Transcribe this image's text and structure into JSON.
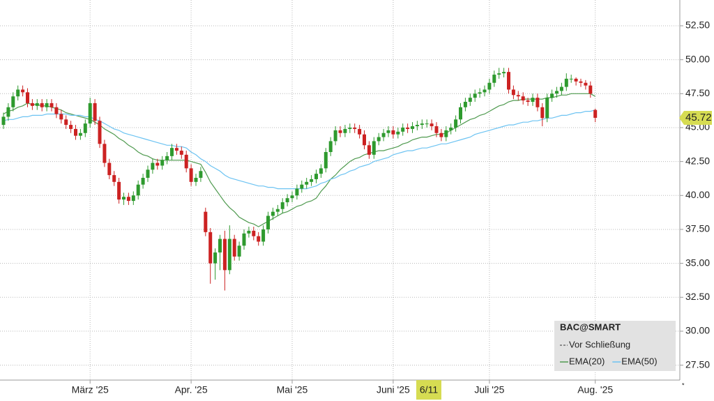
{
  "chart_data": {
    "type": "candlestick",
    "symbol": "BAC@SMART",
    "legend_note": "Vor Schließung",
    "footnote": "*",
    "crosshair_label": "6/11",
    "last_price": {
      "value": 45.72,
      "label": "45.72"
    },
    "categories": [
      null,
      null,
      null,
      null,
      null,
      null,
      null,
      null,
      null,
      null,
      null,
      null,
      null,
      null,
      null,
      null,
      null,
      null,
      "März '25",
      null,
      null,
      null,
      null,
      null,
      null,
      null,
      null,
      null,
      null,
      null,
      null,
      null,
      null,
      null,
      null,
      null,
      null,
      null,
      null,
      "Apr. '25",
      null,
      null,
      null,
      null,
      null,
      null,
      null,
      null,
      null,
      null,
      null,
      null,
      null,
      null,
      null,
      null,
      null,
      null,
      null,
      null,
      "Mai '25",
      null,
      null,
      null,
      null,
      null,
      null,
      null,
      null,
      null,
      null,
      null,
      null,
      null,
      null,
      null,
      null,
      null,
      null,
      null,
      null,
      "Juni '25",
      null,
      null,
      null,
      null,
      null,
      null,
      null,
      null,
      null,
      null,
      null,
      null,
      null,
      null,
      null,
      null,
      null,
      null,
      null,
      "Juli '25",
      null,
      null,
      null,
      null,
      null,
      null,
      null,
      null,
      null,
      null,
      null,
      null,
      null,
      null,
      null,
      null,
      null,
      null,
      null,
      null,
      null,
      "Aug. '25"
    ],
    "candles": {
      "up_color": "#2e9a2e",
      "down_color": "#cc2222",
      "open": [
        45.2,
        45.8,
        46.5,
        47.3,
        47.8,
        47.6,
        46.8,
        46.6,
        46.8,
        46.5,
        46.8,
        46.5,
        46.0,
        45.6,
        45.2,
        44.9,
        44.4,
        44.6,
        45.3,
        46.8,
        45.5,
        43.8,
        42.4,
        41.5,
        41.0,
        39.7,
        39.9,
        39.6,
        40.0,
        40.8,
        41.3,
        41.9,
        42.4,
        42.2,
        42.6,
        42.9,
        43.5,
        43.3,
        43.0,
        42.0,
        41.0,
        41.3,
        38.8,
        37.3,
        35.0,
        35.8,
        36.8,
        34.5,
        36.8,
        35.5,
        36.3,
        37.2,
        37.4,
        37.0,
        36.6,
        37.5,
        38.5,
        38.8,
        39.0,
        39.5,
        39.8,
        40.0,
        40.5,
        40.8,
        41.0,
        41.2,
        41.6,
        42.0,
        43.2,
        44.0,
        44.8,
        44.6,
        44.9,
        45.0,
        44.9,
        44.5,
        43.7,
        43.0,
        44.0,
        44.3,
        44.6,
        44.8,
        44.5,
        44.7,
        45.0,
        44.9,
        45.1,
        45.2,
        45.3,
        45.3,
        45.1,
        44.6,
        44.3,
        44.8,
        45.0,
        45.6,
        46.5,
        46.9,
        47.2,
        47.5,
        47.6,
        47.8,
        48.3,
        48.9,
        49.0,
        49.1,
        47.8,
        47.4,
        47.3,
        47.0,
        46.9,
        47.2,
        46.5,
        45.7,
        47.2,
        47.5,
        47.7,
        48.0,
        48.6,
        48.6,
        48.4,
        48.3,
        48.1,
        46.3
      ],
      "high": [
        46.1,
        46.8,
        47.6,
        48.1,
        48.1,
        47.9,
        47.1,
        47.1,
        47.1,
        47.1,
        47.1,
        46.8,
        46.3,
        45.9,
        45.5,
        45.2,
        44.9,
        45.6,
        47.2,
        47.1,
        45.8,
        44.1,
        42.7,
        41.8,
        41.3,
        40.2,
        40.2,
        40.3,
        41.1,
        41.6,
        42.2,
        42.7,
        42.7,
        42.9,
        43.2,
        43.8,
        43.8,
        43.6,
        43.3,
        42.3,
        41.6,
        42.1,
        39.1,
        37.6,
        36.1,
        37.1,
        37.4,
        37.8,
        37.1,
        36.6,
        37.5,
        37.7,
        37.7,
        37.3,
        37.8,
        38.8,
        39.1,
        39.3,
        39.8,
        40.1,
        40.3,
        40.8,
        41.1,
        41.3,
        41.5,
        41.9,
        42.3,
        43.5,
        44.3,
        45.1,
        45.1,
        45.2,
        45.3,
        45.3,
        45.2,
        44.8,
        44.0,
        44.3,
        44.6,
        44.9,
        45.1,
        45.1,
        45.0,
        45.3,
        45.3,
        45.4,
        45.5,
        45.6,
        45.6,
        45.6,
        45.4,
        44.9,
        45.1,
        45.3,
        45.9,
        46.8,
        47.2,
        47.5,
        47.8,
        47.9,
        48.1,
        48.6,
        49.2,
        49.4,
        49.4,
        49.4,
        48.1,
        47.7,
        47.6,
        47.2,
        47.5,
        47.5,
        46.8,
        47.5,
        47.8,
        48.0,
        48.3,
        49.0,
        48.9,
        48.7,
        48.6,
        48.5,
        48.4,
        46.4
      ],
      "low": [
        44.9,
        45.5,
        46.2,
        47.0,
        47.3,
        46.5,
        46.3,
        46.3,
        46.2,
        46.2,
        46.2,
        45.7,
        45.3,
        44.9,
        44.6,
        44.1,
        44.1,
        44.3,
        45.0,
        45.2,
        43.5,
        42.1,
        41.2,
        40.7,
        39.4,
        39.3,
        39.3,
        39.3,
        39.7,
        40.5,
        41.0,
        41.6,
        41.9,
        41.9,
        42.3,
        42.6,
        43.0,
        42.7,
        41.7,
        40.7,
        40.7,
        41.0,
        37.0,
        33.5,
        33.8,
        34.5,
        33.0,
        34.2,
        35.2,
        35.2,
        36.0,
        36.9,
        36.7,
        36.3,
        36.3,
        37.2,
        38.2,
        38.5,
        38.7,
        39.2,
        39.5,
        39.7,
        40.2,
        40.5,
        40.7,
        40.9,
        41.3,
        41.7,
        42.9,
        43.7,
        44.3,
        44.3,
        44.6,
        44.6,
        44.2,
        43.4,
        42.7,
        42.7,
        43.7,
        44.0,
        44.3,
        44.2,
        44.2,
        44.4,
        44.6,
        44.6,
        44.8,
        44.9,
        45.0,
        44.8,
        44.3,
        44.0,
        44.0,
        44.5,
        44.7,
        45.3,
        46.2,
        46.6,
        46.9,
        47.2,
        47.3,
        47.5,
        48.0,
        48.6,
        48.7,
        47.5,
        47.1,
        47.0,
        46.7,
        46.6,
        46.6,
        46.2,
        45.1,
        45.4,
        46.9,
        47.2,
        47.4,
        47.7,
        48.3,
        48.1,
        48.0,
        47.8,
        47.2,
        45.4
      ],
      "close": [
        45.8,
        46.5,
        47.3,
        47.8,
        47.6,
        46.8,
        46.6,
        46.8,
        46.5,
        46.8,
        46.5,
        46.0,
        45.6,
        45.2,
        44.9,
        44.4,
        44.6,
        45.3,
        46.8,
        45.5,
        43.8,
        42.4,
        41.5,
        41.0,
        39.7,
        39.9,
        39.6,
        40.0,
        40.8,
        41.3,
        41.9,
        42.4,
        42.2,
        42.6,
        42.9,
        43.5,
        43.3,
        43.0,
        42.0,
        41.0,
        41.3,
        41.8,
        37.3,
        35.0,
        35.8,
        36.8,
        34.5,
        36.8,
        35.5,
        36.3,
        37.2,
        37.4,
        37.0,
        36.6,
        37.5,
        38.5,
        38.8,
        39.0,
        39.5,
        39.8,
        40.0,
        40.5,
        40.8,
        41.0,
        41.2,
        41.6,
        42.0,
        43.2,
        44.0,
        44.8,
        44.6,
        44.9,
        45.0,
        44.9,
        44.5,
        43.7,
        43.0,
        44.0,
        44.3,
        44.6,
        44.8,
        44.5,
        44.7,
        45.0,
        44.9,
        45.1,
        45.2,
        45.3,
        45.3,
        45.1,
        44.6,
        44.3,
        44.8,
        45.0,
        45.6,
        46.5,
        46.9,
        47.2,
        47.5,
        47.6,
        47.8,
        48.3,
        48.9,
        49.0,
        49.1,
        47.8,
        47.4,
        47.3,
        47.0,
        46.9,
        47.2,
        46.5,
        45.7,
        47.2,
        47.5,
        47.7,
        48.0,
        48.6,
        48.6,
        48.4,
        48.3,
        48.1,
        47.5,
        45.72
      ]
    },
    "series": [
      {
        "name": "EMA(20)",
        "color": "#4f9a4f",
        "values": [
          46.0,
          46.2,
          46.3,
          46.5,
          46.6,
          46.8,
          46.7,
          46.7,
          46.6,
          46.6,
          46.5,
          46.4,
          46.3,
          46.1,
          46.0,
          45.9,
          45.8,
          45.7,
          45.6,
          45.4,
          45.2,
          44.9,
          44.7,
          44.5,
          44.2,
          44.0,
          43.7,
          43.5,
          43.2,
          43.0,
          42.9,
          42.7,
          42.6,
          42.6,
          42.6,
          42.6,
          42.6,
          42.6,
          42.6,
          42.5,
          42.4,
          42.3,
          41.7,
          41.0,
          40.5,
          40.0,
          39.5,
          39.1,
          38.8,
          38.4,
          38.2,
          38.0,
          37.9,
          37.7,
          37.9,
          38.1,
          38.3,
          38.5,
          38.7,
          38.8,
          39.0,
          39.2,
          39.3,
          39.5,
          39.6,
          39.8,
          40.3,
          40.7,
          41.2,
          41.5,
          41.9,
          42.2,
          42.5,
          42.7,
          42.8,
          43.0,
          43.1,
          43.2,
          43.3,
          43.3,
          43.4,
          43.5,
          43.6,
          43.8,
          43.9,
          44.1,
          44.2,
          44.3,
          44.3,
          44.4,
          44.5,
          44.5,
          44.6,
          44.8,
          45.0,
          45.2,
          45.4,
          45.6,
          45.7,
          45.9,
          46.0,
          46.2,
          46.4,
          46.6,
          46.7,
          46.9,
          47.0,
          47.0,
          47.1,
          47.1,
          47.1,
          47.1,
          47.1,
          47.2,
          47.2,
          47.3,
          47.4,
          47.4,
          47.5,
          47.5,
          47.5,
          47.5,
          47.5,
          47.3
        ]
      },
      {
        "name": "EMA(50)",
        "color": "#6cc3f2",
        "values": [
          45.5,
          45.6,
          45.6,
          45.7,
          45.8,
          45.8,
          45.9,
          45.9,
          45.9,
          46.0,
          46.0,
          46.0,
          46.0,
          46.0,
          45.9,
          45.9,
          45.9,
          45.8,
          45.8,
          45.6,
          45.5,
          45.3,
          45.1,
          44.9,
          44.8,
          44.6,
          44.5,
          44.4,
          44.3,
          44.2,
          44.1,
          44.0,
          43.9,
          43.8,
          43.7,
          43.7,
          43.6,
          43.6,
          43.5,
          43.2,
          43.0,
          42.7,
          42.5,
          42.2,
          42.0,
          41.8,
          41.5,
          41.3,
          41.2,
          41.1,
          41.0,
          40.9,
          40.8,
          40.7,
          40.7,
          40.6,
          40.6,
          40.5,
          40.5,
          40.5,
          40.5,
          40.5,
          40.5,
          40.5,
          40.6,
          40.7,
          40.9,
          41.0,
          41.2,
          41.3,
          41.5,
          41.6,
          41.8,
          41.9,
          42.1,
          42.2,
          42.3,
          42.5,
          42.6,
          42.7,
          42.8,
          43.0,
          43.1,
          43.2,
          43.3,
          43.3,
          43.4,
          43.5,
          43.5,
          43.6,
          43.7,
          43.8,
          43.8,
          43.9,
          44.0,
          44.1,
          44.2,
          44.3,
          44.5,
          44.6,
          44.7,
          44.8,
          44.9,
          45.0,
          45.1,
          45.2,
          45.2,
          45.3,
          45.4,
          45.4,
          45.5,
          45.5,
          45.6,
          45.7,
          45.7,
          45.8,
          45.9,
          45.9,
          46.0,
          46.1,
          46.1,
          46.2,
          46.2,
          46.3
        ]
      }
    ],
    "ylim": [
      26.4,
      54.4
    ],
    "yticks": [
      {
        "value": 27.5,
        "label": "27.50"
      },
      {
        "value": 30,
        "label": "30.00"
      },
      {
        "value": 32.5,
        "label": "32.50"
      },
      {
        "value": 35,
        "label": "35.00"
      },
      {
        "value": 37.5,
        "label": "37.50"
      },
      {
        "value": 40,
        "label": "40.00"
      },
      {
        "value": 42.5,
        "label": "42.50"
      },
      {
        "value": 45,
        "label": "45.00"
      },
      {
        "value": 47.5,
        "label": "47.50"
      },
      {
        "value": 50,
        "label": "50.00"
      },
      {
        "value": 52.5,
        "label": "52.50"
      }
    ],
    "grid": true
  }
}
